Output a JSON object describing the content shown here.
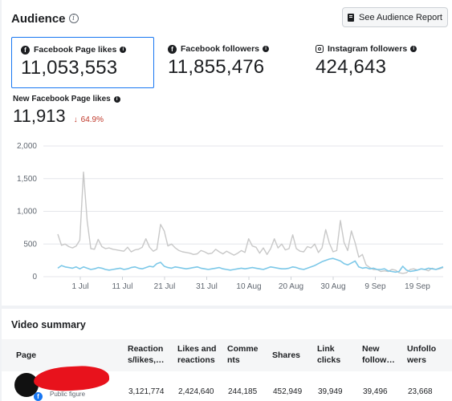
{
  "audience": {
    "title": "Audience",
    "report_button": "See Audience Report",
    "metrics": [
      {
        "label": "Facebook Page likes",
        "value": "11,053,553",
        "icon": "facebook-icon",
        "selected": true
      },
      {
        "label": "Facebook followers",
        "value": "11,855,476",
        "icon": "facebook-icon",
        "selected": false
      },
      {
        "label": "Instagram followers",
        "value": "424,643",
        "icon": "instagram-icon",
        "selected": false
      }
    ],
    "new_likes": {
      "label": "New Facebook Page likes",
      "value": "11,913",
      "change": "64.9%",
      "change_direction": "down"
    }
  },
  "chart_data": {
    "type": "line",
    "y_ticks": [
      "2,000",
      "1,500",
      "1,000",
      "500",
      "0"
    ],
    "x_ticks": [
      "1 Jul",
      "11 Jul",
      "21 Jul",
      "31 Jul",
      "10 Aug",
      "20 Aug",
      "30 Aug",
      "9 Sep",
      "19 Sep"
    ],
    "ylim": [
      0,
      2000
    ],
    "grid": true,
    "series": [
      {
        "color": "#c8c8c8",
        "values": [
          650,
          480,
          500,
          460,
          440,
          470,
          560,
          1600,
          850,
          430,
          420,
          570,
          460,
          430,
          440,
          420,
          410,
          400,
          390,
          450,
          380,
          410,
          420,
          450,
          580,
          450,
          390,
          420,
          800,
          700,
          470,
          500,
          440,
          400,
          380,
          370,
          360,
          340,
          350,
          400,
          380,
          350,
          360,
          420,
          380,
          350,
          390,
          360,
          330,
          360,
          400,
          370,
          580,
          470,
          450,
          360,
          440,
          340,
          430,
          580,
          440,
          500,
          410,
          430,
          640,
          430,
          390,
          380,
          460,
          440,
          500,
          370,
          440,
          720,
          510,
          380,
          400,
          860,
          520,
          400,
          700,
          520,
          300,
          340,
          180,
          140,
          110,
          110,
          80,
          90,
          80,
          110,
          100,
          60,
          50,
          60,
          110,
          120,
          100,
          120,
          110,
          90,
          130,
          110,
          120,
          140
        ]
      },
      {
        "color": "#7cc8e8",
        "values": [
          130,
          170,
          150,
          140,
          130,
          150,
          120,
          150,
          130,
          110,
          120,
          140,
          130,
          110,
          100,
          110,
          120,
          130,
          110,
          120,
          140,
          150,
          130,
          120,
          140,
          160,
          150,
          200,
          220,
          160,
          140,
          130,
          150,
          140,
          130,
          120,
          130,
          140,
          150,
          130,
          120,
          110,
          120,
          130,
          140,
          120,
          110,
          100,
          110,
          120,
          130,
          120,
          130,
          140,
          130,
          120,
          110,
          130,
          150,
          140,
          130,
          120,
          120,
          130,
          150,
          140,
          120,
          110,
          130,
          150,
          170,
          200,
          230,
          250,
          270,
          280,
          260,
          240,
          200,
          180,
          210,
          240,
          150,
          130,
          140,
          120,
          130,
          110,
          110,
          120,
          90,
          80,
          70,
          80,
          160,
          100,
          80,
          90,
          100,
          120,
          110,
          130,
          120,
          110,
          130,
          150
        ]
      }
    ]
  },
  "video_summary": {
    "title": "Video summary",
    "columns": [
      "Page",
      "Reaction s/likes,…",
      "Likes and reactions",
      "Comme nts",
      "Shares",
      "Link clicks",
      "New follow…",
      "Unfollo wers"
    ],
    "row": {
      "sub_label": "Public figure",
      "values": [
        "3,121,774",
        "2,424,640",
        "244,185",
        "452,949",
        "39,949",
        "39,496",
        "23,668"
      ]
    }
  }
}
